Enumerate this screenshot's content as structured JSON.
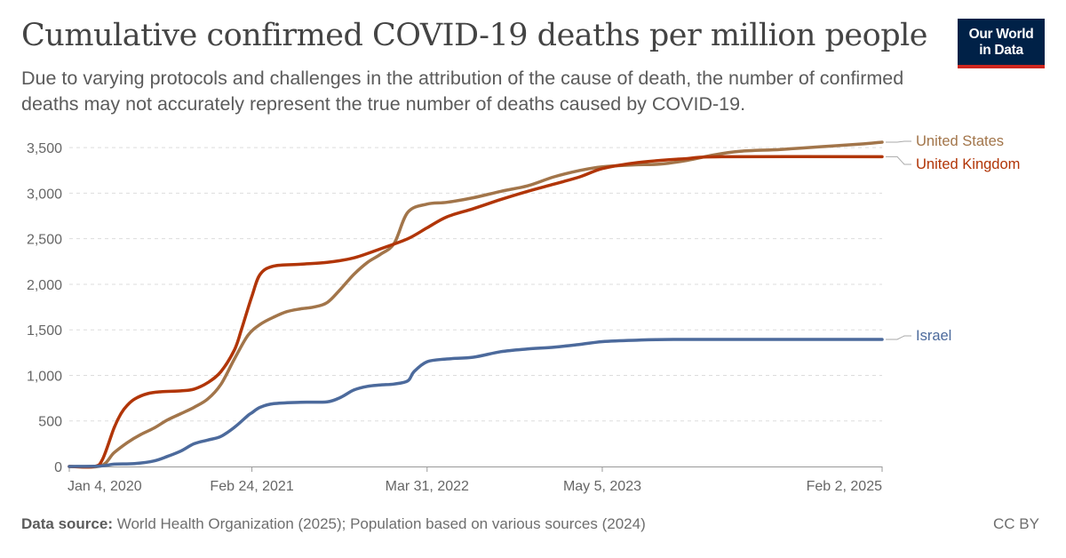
{
  "header": {
    "title": "Cumulative confirmed COVID-19 deaths per million people",
    "subtitle": "Due to varying protocols and challenges in the attribution of the cause of death, the number of confirmed deaths may not accurately represent the true number of deaths caused by COVID-19.",
    "logo_line1": "Our World",
    "logo_line2": "in Data",
    "logo_color": "#002147",
    "logo_accent": "#ce261e"
  },
  "footer": {
    "source_label": "Data source:",
    "source_text": "World Health Organization (2025); Population based on various sources (2024)",
    "license": "CC BY"
  },
  "chart_data": {
    "type": "line",
    "title": "Cumulative confirmed COVID-19 deaths per million people",
    "xlabel": "",
    "ylabel": "",
    "x_ticks": [
      "Jan 4, 2020",
      "Feb 24, 2021",
      "Mar 31, 2022",
      "May 5, 2023",
      "Feb 2, 2025"
    ],
    "y_ticks": [
      0,
      500,
      1000,
      1500,
      2000,
      2500,
      3000,
      3500
    ],
    "y_tick_labels": [
      "0",
      "500",
      "1,000",
      "1,500",
      "2,000",
      "2,500",
      "3,000",
      "3,500"
    ],
    "ylim": [
      0,
      3560
    ],
    "xlim": [
      "2020-01-04",
      "2025-02-02"
    ],
    "grid": true,
    "legend": "right-end-labels",
    "series": [
      {
        "name": "United States",
        "color": "#a2754a",
        "points": [
          [
            "2020-01-04",
            0
          ],
          [
            "2020-03-15",
            5
          ],
          [
            "2020-04-15",
            150
          ],
          [
            "2020-05-15",
            260
          ],
          [
            "2020-06-15",
            350
          ],
          [
            "2020-07-15",
            420
          ],
          [
            "2020-08-15",
            510
          ],
          [
            "2020-09-15",
            580
          ],
          [
            "2020-10-15",
            650
          ],
          [
            "2020-11-15",
            740
          ],
          [
            "2020-12-15",
            900
          ],
          [
            "2021-01-15",
            1180
          ],
          [
            "2021-02-15",
            1440
          ],
          [
            "2021-03-15",
            1560
          ],
          [
            "2021-04-15",
            1640
          ],
          [
            "2021-05-15",
            1700
          ],
          [
            "2021-06-15",
            1730
          ],
          [
            "2021-07-15",
            1750
          ],
          [
            "2021-08-15",
            1800
          ],
          [
            "2021-09-15",
            1950
          ],
          [
            "2021-10-15",
            2110
          ],
          [
            "2021-11-15",
            2240
          ],
          [
            "2021-12-15",
            2330
          ],
          [
            "2022-01-15",
            2450
          ],
          [
            "2022-02-15",
            2790
          ],
          [
            "2022-03-31",
            2880
          ],
          [
            "2022-05-15",
            2900
          ],
          [
            "2022-07-15",
            2950
          ],
          [
            "2022-09-15",
            3020
          ],
          [
            "2022-11-15",
            3080
          ],
          [
            "2023-01-15",
            3180
          ],
          [
            "2023-03-15",
            3250
          ],
          [
            "2023-05-05",
            3290
          ],
          [
            "2023-07-15",
            3310
          ],
          [
            "2023-09-15",
            3320
          ],
          [
            "2023-11-15",
            3360
          ],
          [
            "2024-01-15",
            3420
          ],
          [
            "2024-03-15",
            3460
          ],
          [
            "2024-06-15",
            3480
          ],
          [
            "2024-09-15",
            3510
          ],
          [
            "2024-12-15",
            3540
          ],
          [
            "2025-02-02",
            3560
          ]
        ]
      },
      {
        "name": "United Kingdom",
        "color": "#b13507",
        "points": [
          [
            "2020-01-04",
            0
          ],
          [
            "2020-03-01",
            0
          ],
          [
            "2020-03-20",
            80
          ],
          [
            "2020-04-15",
            420
          ],
          [
            "2020-05-01",
            580
          ],
          [
            "2020-05-15",
            670
          ],
          [
            "2020-06-01",
            740
          ],
          [
            "2020-07-01",
            800
          ],
          [
            "2020-08-01",
            820
          ],
          [
            "2020-09-15",
            830
          ],
          [
            "2020-10-15",
            850
          ],
          [
            "2020-11-15",
            920
          ],
          [
            "2020-12-15",
            1040
          ],
          [
            "2021-01-15",
            1280
          ],
          [
            "2021-01-31",
            1500
          ],
          [
            "2021-02-24",
            1870
          ],
          [
            "2021-03-15",
            2110
          ],
          [
            "2021-04-15",
            2200
          ],
          [
            "2021-06-15",
            2220
          ],
          [
            "2021-08-15",
            2240
          ],
          [
            "2021-10-15",
            2290
          ],
          [
            "2021-12-15",
            2390
          ],
          [
            "2022-02-15",
            2500
          ],
          [
            "2022-03-31",
            2620
          ],
          [
            "2022-05-15",
            2740
          ],
          [
            "2022-07-15",
            2830
          ],
          [
            "2022-09-15",
            2930
          ],
          [
            "2022-11-15",
            3020
          ],
          [
            "2023-01-15",
            3100
          ],
          [
            "2023-03-15",
            3180
          ],
          [
            "2023-05-05",
            3270
          ],
          [
            "2023-07-15",
            3330
          ],
          [
            "2023-09-15",
            3360
          ],
          [
            "2023-11-15",
            3380
          ],
          [
            "2024-02-01",
            3400
          ],
          [
            "2025-02-02",
            3400
          ]
        ]
      },
      {
        "name": "Israel",
        "color": "#4c6a9c",
        "points": [
          [
            "2020-01-04",
            0
          ],
          [
            "2020-03-15",
            5
          ],
          [
            "2020-04-15",
            25
          ],
          [
            "2020-06-01",
            32
          ],
          [
            "2020-07-15",
            60
          ],
          [
            "2020-08-15",
            110
          ],
          [
            "2020-09-15",
            170
          ],
          [
            "2020-10-15",
            250
          ],
          [
            "2020-11-15",
            290
          ],
          [
            "2020-12-15",
            330
          ],
          [
            "2021-01-15",
            430
          ],
          [
            "2021-02-15",
            560
          ],
          [
            "2021-02-24",
            590
          ],
          [
            "2021-03-15",
            650
          ],
          [
            "2021-04-15",
            690
          ],
          [
            "2021-06-15",
            705
          ],
          [
            "2021-08-15",
            710
          ],
          [
            "2021-09-15",
            760
          ],
          [
            "2021-10-15",
            840
          ],
          [
            "2021-11-15",
            880
          ],
          [
            "2021-12-15",
            895
          ],
          [
            "2022-01-15",
            905
          ],
          [
            "2022-02-15",
            940
          ],
          [
            "2022-03-01",
            1040
          ],
          [
            "2022-03-31",
            1150
          ],
          [
            "2022-05-15",
            1180
          ],
          [
            "2022-07-15",
            1200
          ],
          [
            "2022-09-15",
            1260
          ],
          [
            "2022-11-15",
            1290
          ],
          [
            "2023-01-15",
            1310
          ],
          [
            "2023-03-15",
            1340
          ],
          [
            "2023-05-05",
            1370
          ],
          [
            "2023-07-15",
            1385
          ],
          [
            "2023-10-15",
            1395
          ],
          [
            "2024-06-15",
            1395
          ],
          [
            "2025-02-02",
            1395
          ]
        ]
      }
    ]
  }
}
